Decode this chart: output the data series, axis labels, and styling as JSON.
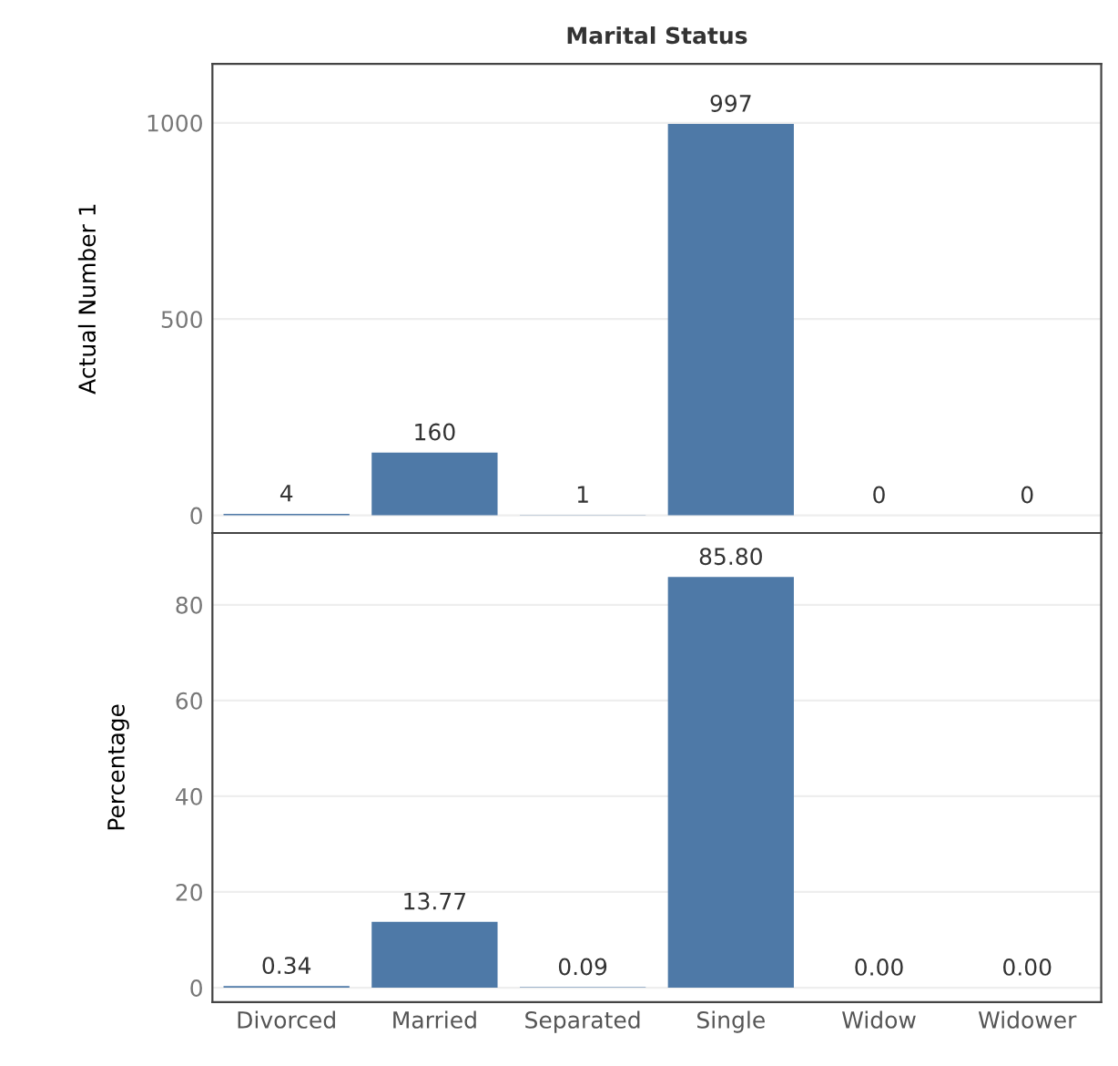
{
  "chart_data": [
    {
      "type": "bar",
      "title": "Marital Status",
      "ylabel": "Actual Number 1",
      "categories": [
        null,
        null,
        null,
        null,
        null,
        null
      ],
      "series": [
        {
          "color": "#4e79a7",
          "values": [
            4,
            160,
            1,
            997,
            0,
            0
          ]
        }
      ],
      "ylim": [
        -45,
        1150
      ],
      "yticks": [
        0,
        500,
        1000
      ],
      "grid": "y",
      "data_labels": true,
      "tick_labels": "y"
    },
    {
      "type": "bar",
      "ylabel": "Percentage",
      "categories": [
        "Divorced",
        "Married",
        "Separated",
        "Single",
        "Widow",
        "Widower"
      ],
      "series": [
        {
          "color": "#4e79a7",
          "values": [
            0.34,
            13.77,
            0.09,
            85.8,
            0.0,
            0.0
          ],
          "value_labels": [
            "0.34",
            "13.77",
            "0.09",
            "85.80",
            "0.00",
            "0.00"
          ]
        }
      ],
      "ylim": [
        -3,
        95
      ],
      "yticks": [
        0,
        20,
        40,
        60,
        80
      ],
      "grid": "y"
    }
  ]
}
